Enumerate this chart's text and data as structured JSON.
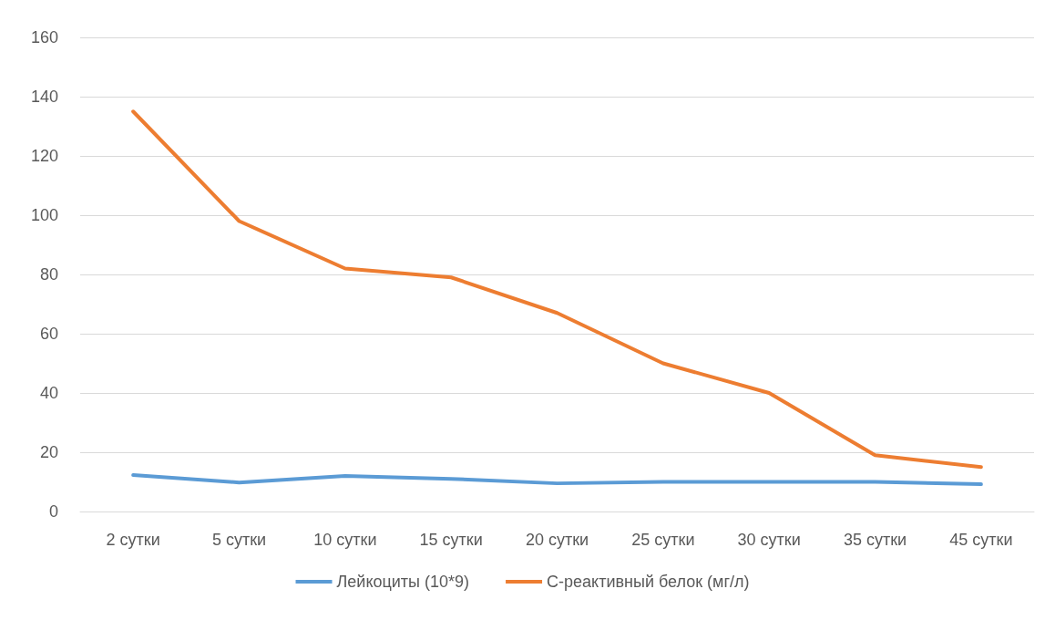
{
  "chart_data": {
    "type": "line",
    "categories": [
      "2 сутки",
      "5 сутки",
      "10 сутки",
      "15 сутки",
      "20 сутки",
      "25 сутки",
      "30 сутки",
      "35 сутки",
      "45 сутки"
    ],
    "series": [
      {
        "name": "Лейкоциты (10*9)",
        "color": "#5b9bd5",
        "values": [
          12.3,
          9.8,
          12,
          11,
          9.5,
          10,
          10,
          10,
          9.2
        ]
      },
      {
        "name": "С-реактивный белок (мг/л)",
        "color": "#ed7d31",
        "values": [
          135,
          98,
          82,
          79,
          67,
          50,
          40,
          19,
          15
        ]
      }
    ],
    "ylim": [
      0,
      160
    ],
    "yticks": [
      0,
      20,
      40,
      60,
      80,
      100,
      120,
      140,
      160
    ],
    "grid": "y",
    "legend": "bottom",
    "marker": "none",
    "line_style": "solid"
  }
}
